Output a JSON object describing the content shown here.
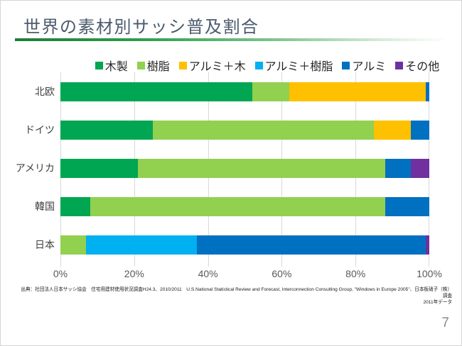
{
  "slide": {
    "title": "世界の素材別サッシ普及割合",
    "page_number": "7",
    "source_line1": "出典：社団法人日本サッシ協会　住宅用建材使用状況調査H24.3、2010/2011　U.S.National Statistical Review and Forecast, Interconnection Consulting Group, \"Windows in Europe 2005\"、日本板硝子（株）調査",
    "source_line2": "2011年データ"
  },
  "chart_data": {
    "type": "bar",
    "orientation": "horizontal",
    "stacked": true,
    "title": "世界の素材別サッシ普及割合",
    "unit": "percent",
    "xlim": [
      0,
      100
    ],
    "grid": true,
    "legend_position": "top",
    "x_ticks": [
      "0%",
      "20%",
      "40%",
      "60%",
      "80%",
      "100%"
    ],
    "categories": [
      "北欧",
      "ドイツ",
      "アメリカ",
      "韓国",
      "日本"
    ],
    "series": [
      {
        "name": "木製",
        "color": "#00a651",
        "values": [
          52,
          25,
          21,
          8,
          0
        ]
      },
      {
        "name": "樹脂",
        "color": "#92d050",
        "values": [
          10,
          60,
          67,
          80,
          7
        ]
      },
      {
        "name": "アルミ＋木",
        "color": "#ffc000",
        "values": [
          37,
          10,
          0,
          0,
          0
        ]
      },
      {
        "name": "アルミ＋樹脂",
        "color": "#00b0f0",
        "values": [
          0,
          0,
          0,
          0,
          30
        ]
      },
      {
        "name": "アルミ",
        "color": "#0070c0",
        "values": [
          1,
          5,
          7,
          12,
          62
        ]
      },
      {
        "name": "その他",
        "color": "#7030a0",
        "values": [
          0,
          0,
          5,
          0,
          1
        ]
      }
    ]
  }
}
